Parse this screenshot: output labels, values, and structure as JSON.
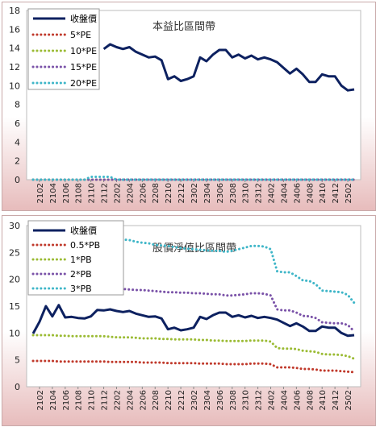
{
  "colors": {
    "close": "#0d2160",
    "pe5": "#c0392b",
    "pe10": "#9bbb34",
    "pe15": "#7a52a8",
    "pe20": "#3fb6c8",
    "pb05": "#c0392b",
    "pb1": "#9bbb34",
    "pb2": "#7a52a8",
    "pb3": "#3fb6c8",
    "background_top": "#ffffff",
    "background_bottom": "#e7bcbc"
  },
  "chart_data": [
    {
      "type": "line",
      "title": "本益比區間帶",
      "ylim": [
        0,
        18
      ],
      "yticks": [
        0,
        2,
        4,
        6,
        8,
        10,
        12,
        14,
        16,
        18
      ],
      "grid": false,
      "legend_position": "top-left",
      "x": [
        "2101",
        "2102",
        "2103",
        "2104",
        "2105",
        "2106",
        "2107",
        "2108",
        "2109",
        "2110",
        "2111",
        "2112",
        "2201",
        "2202",
        "2203",
        "2204",
        "2205",
        "2206",
        "2207",
        "2208",
        "2209",
        "2210",
        "2211",
        "2212",
        "2301",
        "2302",
        "2303",
        "2304",
        "2305",
        "2306",
        "2307",
        "2308",
        "2309",
        "2310",
        "2311",
        "2312",
        "2401",
        "2402",
        "2403",
        "2404",
        "2405",
        "2406",
        "2407",
        "2408",
        "2409",
        "2410",
        "2411",
        "2412",
        "2501",
        "2502",
        "2503"
      ],
      "xtick_labels": [
        "2102",
        "2104",
        "2106",
        "2108",
        "2110",
        "2112",
        "2202",
        "2204",
        "2206",
        "2208",
        "2210",
        "2212",
        "2302",
        "2304",
        "2306",
        "2308",
        "2310",
        "2312",
        "2402",
        "2404",
        "2406",
        "2408",
        "2410",
        "2412",
        "2502"
      ],
      "series": [
        {
          "name": "收盤價",
          "style": "solid",
          "values": [
            null,
            null,
            null,
            null,
            null,
            null,
            null,
            null,
            null,
            null,
            null,
            13.9,
            14.4,
            14.1,
            13.9,
            14.1,
            13.6,
            13.3,
            13.0,
            13.1,
            12.7,
            10.7,
            11.0,
            10.5,
            10.7,
            11.0,
            13.0,
            12.6,
            13.3,
            13.8,
            13.8,
            13.0,
            13.3,
            12.9,
            13.2,
            12.8,
            13.0,
            12.8,
            12.5,
            11.9,
            11.3,
            11.8,
            11.2,
            10.4,
            10.4,
            11.2,
            11.0,
            11.0,
            10.0,
            9.5,
            9.6
          ]
        },
        {
          "name": "5*PE",
          "style": "dotted",
          "values": [
            0,
            0,
            0,
            0,
            0,
            0,
            0,
            0,
            0,
            0,
            0,
            0,
            0,
            0,
            0,
            0,
            0,
            0,
            0,
            0,
            0,
            0,
            0,
            0,
            0,
            0,
            0,
            0,
            0,
            0,
            0,
            0,
            0,
            0,
            0,
            0,
            0,
            0,
            0,
            0,
            0,
            0,
            0,
            0,
            0,
            0,
            0,
            0,
            0,
            0,
            0
          ]
        },
        {
          "name": "10*PE",
          "style": "dotted",
          "values": [
            0,
            0,
            0,
            0,
            0,
            0,
            0,
            0,
            0,
            0,
            0,
            0,
            0,
            0,
            0,
            0,
            0,
            0,
            0,
            0,
            0,
            0,
            0,
            0,
            0,
            0,
            0,
            0,
            0,
            0,
            0,
            0,
            0,
            0,
            0,
            0,
            0,
            0,
            0,
            0,
            0,
            0,
            0,
            0,
            0,
            0,
            0,
            0,
            0,
            0,
            0
          ]
        },
        {
          "name": "15*PE",
          "style": "dotted",
          "values": [
            0,
            0,
            0,
            0,
            0,
            0,
            0,
            0,
            0,
            0,
            0,
            0,
            0,
            0,
            0,
            0,
            0,
            0,
            0,
            0,
            0,
            0,
            0,
            0,
            0,
            0,
            0,
            0,
            0,
            0,
            0,
            0,
            0,
            0,
            0,
            0,
            0,
            0,
            0,
            0,
            0,
            0,
            0,
            0,
            0,
            0,
            0,
            0,
            0,
            0,
            0
          ]
        },
        {
          "name": "20*PE",
          "style": "dotted",
          "values": [
            0,
            0,
            0,
            0,
            0,
            0,
            0,
            0,
            0,
            0.3,
            0.3,
            0.3,
            0.3,
            0,
            0,
            0,
            0,
            0,
            0,
            0,
            0,
            0,
            0,
            0,
            0,
            0,
            0,
            0,
            0,
            0,
            0,
            0,
            0,
            0,
            0,
            0,
            0,
            0,
            0,
            0,
            0,
            0,
            0,
            0,
            0,
            0,
            0,
            0,
            0,
            0,
            0
          ]
        }
      ]
    },
    {
      "type": "line",
      "title": "股價淨值比區間帶",
      "ylim": [
        0,
        30
      ],
      "yticks": [
        0,
        5,
        10,
        15,
        20,
        25,
        30
      ],
      "grid": false,
      "legend_position": "top-left",
      "x": [
        "2101",
        "2102",
        "2103",
        "2104",
        "2105",
        "2106",
        "2107",
        "2108",
        "2109",
        "2110",
        "2111",
        "2112",
        "2201",
        "2202",
        "2203",
        "2204",
        "2205",
        "2206",
        "2207",
        "2208",
        "2209",
        "2210",
        "2211",
        "2212",
        "2301",
        "2302",
        "2303",
        "2304",
        "2305",
        "2306",
        "2307",
        "2308",
        "2309",
        "2310",
        "2311",
        "2312",
        "2401",
        "2402",
        "2403",
        "2404",
        "2405",
        "2406",
        "2407",
        "2408",
        "2409",
        "2410",
        "2411",
        "2412",
        "2501",
        "2502",
        "2503"
      ],
      "xtick_labels": [
        "2102",
        "2104",
        "2106",
        "2108",
        "2110",
        "2112",
        "2202",
        "2204",
        "2206",
        "2208",
        "2210",
        "2212",
        "2302",
        "2304",
        "2306",
        "2308",
        "2310",
        "2312",
        "2402",
        "2404",
        "2406",
        "2408",
        "2410",
        "2412",
        "2502"
      ],
      "series": [
        {
          "name": "收盤價",
          "style": "solid",
          "values": [
            9.9,
            12.1,
            15.0,
            13.1,
            15.2,
            12.9,
            13.0,
            12.8,
            12.7,
            13.1,
            14.3,
            14.2,
            14.4,
            14.1,
            13.9,
            14.1,
            13.6,
            13.3,
            13.0,
            13.1,
            12.7,
            10.7,
            11.0,
            10.5,
            10.7,
            11.0,
            13.0,
            12.6,
            13.3,
            13.8,
            13.8,
            13.0,
            13.3,
            12.9,
            13.2,
            12.8,
            13.0,
            12.8,
            12.5,
            11.9,
            11.3,
            11.8,
            11.2,
            10.4,
            10.4,
            11.2,
            11.0,
            11.0,
            10.0,
            9.5,
            9.6
          ]
        },
        {
          "name": "0.5*PB",
          "style": "dotted",
          "values": [
            4.8,
            4.8,
            4.8,
            4.8,
            4.7,
            4.7,
            4.7,
            4.7,
            4.7,
            4.7,
            4.7,
            4.7,
            4.6,
            4.6,
            4.6,
            4.6,
            4.6,
            4.5,
            4.5,
            4.5,
            4.5,
            4.4,
            4.4,
            4.4,
            4.4,
            4.4,
            4.3,
            4.3,
            4.3,
            4.3,
            4.2,
            4.2,
            4.2,
            4.2,
            4.3,
            4.3,
            4.3,
            4.2,
            3.6,
            3.6,
            3.6,
            3.5,
            3.3,
            3.3,
            3.2,
            3.0,
            3.0,
            3.0,
            2.9,
            2.8,
            2.7
          ]
        },
        {
          "name": "1*PB",
          "style": "dotted",
          "values": [
            9.6,
            9.6,
            9.6,
            9.6,
            9.5,
            9.5,
            9.4,
            9.4,
            9.4,
            9.4,
            9.4,
            9.4,
            9.3,
            9.2,
            9.2,
            9.2,
            9.1,
            9.0,
            9.0,
            9.0,
            8.9,
            8.9,
            8.8,
            8.8,
            8.8,
            8.8,
            8.7,
            8.7,
            8.6,
            8.6,
            8.5,
            8.5,
            8.5,
            8.5,
            8.6,
            8.6,
            8.6,
            8.4,
            7.2,
            7.1,
            7.1,
            7.0,
            6.7,
            6.6,
            6.5,
            6.1,
            6.0,
            6.0,
            5.9,
            5.7,
            5.2
          ]
        },
        {
          "name": "2*PB",
          "style": "dotted",
          "values": [
            null,
            null,
            null,
            null,
            null,
            null,
            null,
            null,
            null,
            null,
            18.6,
            18.5,
            18.4,
            18.3,
            18.2,
            18.1,
            18.0,
            18.0,
            17.9,
            17.8,
            17.7,
            17.6,
            17.6,
            17.5,
            17.5,
            17.4,
            17.4,
            17.3,
            17.2,
            17.2,
            17.0,
            17.0,
            17.1,
            17.2,
            17.4,
            17.4,
            17.3,
            17.0,
            14.4,
            14.2,
            14.2,
            13.8,
            13.2,
            13.1,
            12.8,
            12.0,
            11.9,
            11.8,
            11.8,
            11.5,
            10.3
          ]
        },
        {
          "name": "3*PB",
          "style": "dotted",
          "values": [
            null,
            null,
            null,
            null,
            null,
            null,
            null,
            null,
            null,
            null,
            null,
            null,
            27.6,
            27.4,
            27.4,
            27.3,
            27.0,
            26.8,
            26.7,
            26.4,
            26.3,
            26.2,
            26.0,
            25.8,
            25.7,
            25.6,
            25.5,
            25.4,
            25.3,
            25.3,
            25.1,
            25.3,
            25.6,
            25.9,
            26.2,
            26.2,
            26.1,
            25.6,
            21.5,
            21.3,
            21.3,
            20.6,
            19.8,
            19.7,
            19.1,
            17.9,
            17.8,
            17.7,
            17.6,
            17.1,
            15.6
          ]
        }
      ]
    }
  ]
}
